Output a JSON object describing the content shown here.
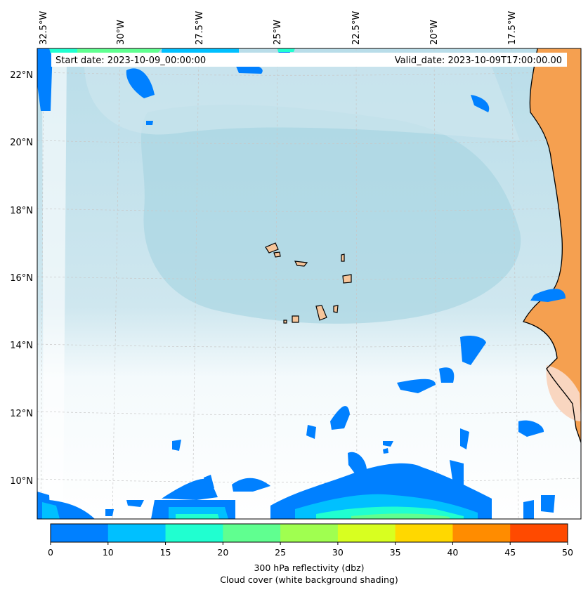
{
  "header": {
    "start_date": "Start date: 2023-10-09_00:00:00",
    "valid_date": "Valid_date: 2023-10-09T17:00:00.00"
  },
  "axes": {
    "lon_labels": [
      "32.5°W",
      "30°W",
      "27.5°W",
      "25°W",
      "22.5°W",
      "20°W",
      "17.5°W"
    ],
    "lat_labels": [
      "22°N",
      "20°N",
      "18°N",
      "16°N",
      "14°N",
      "12°N",
      "10°N"
    ]
  },
  "colorbar": {
    "tick_labels": [
      "0",
      "10",
      "15",
      "20",
      "25",
      "30",
      "35",
      "40",
      "45",
      "50"
    ],
    "colors": [
      "#0080ff",
      "#00c0ff",
      "#20ffd0",
      "#60ff90",
      "#a0ff50",
      "#d8ff20",
      "#ffd800",
      "#ff8c00",
      "#ff4a00"
    ],
    "label_line1": "300 hPa reflectivity (dbz)",
    "label_line2": "Cloud cover (white background shading)"
  },
  "colors": {
    "land": "#f5a050",
    "island": "#f6c59a",
    "cloud": "#add8e6",
    "grid": "#cccccc"
  }
}
